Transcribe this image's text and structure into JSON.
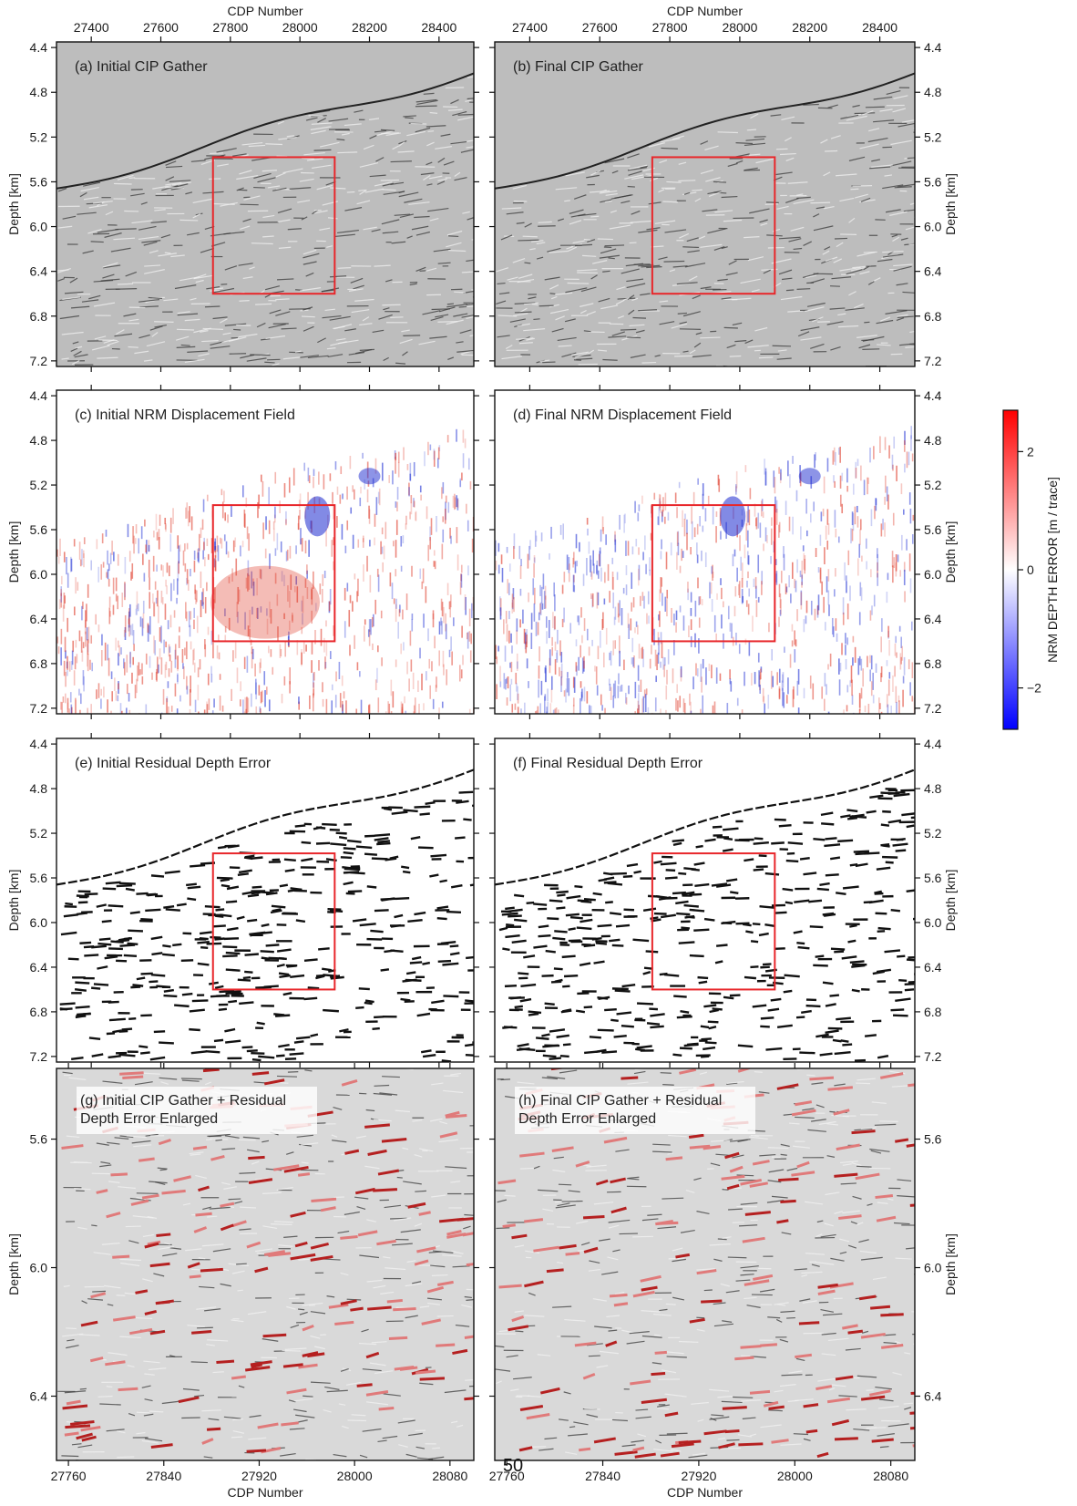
{
  "page_number": "50",
  "colorbar": {
    "label": "NRM DEPTH ERROR [m / trace]",
    "ticks": [
      2,
      0,
      -2
    ],
    "tick_labels": [
      "2",
      "0",
      "−2"
    ],
    "range": [
      -2.7,
      2.7
    ],
    "colors": {
      "high": "#ff0000",
      "mid": "#ffffff",
      "low": "#0000ff"
    }
  },
  "colors": {
    "box": "#e8262a",
    "seismic_bg": "#bdbdbd",
    "red_blue_pos": "#e0402f",
    "red_blue_neg": "#2b3bd6",
    "overlay_red": "#c84040"
  },
  "chart_data": [
    {
      "id": "a",
      "type": "heatmap",
      "title": "(a) Initial CIP Gather",
      "xlabel": "CDP Number",
      "ylabel": "Depth [km]",
      "x_ticks": [
        27400,
        27600,
        27800,
        28000,
        28200,
        28400
      ],
      "y_ticks": [
        "4.4",
        "4.8",
        "5.2",
        "5.6",
        "6.0",
        "6.4",
        "6.8",
        "7.2"
      ],
      "xlim": [
        27300,
        28500
      ],
      "ylim": [
        4.35,
        7.25
      ],
      "style": "seismic",
      "box": {
        "x": [
          27750,
          28100
        ],
        "y": [
          5.38,
          6.6
        ]
      }
    },
    {
      "id": "b",
      "type": "heatmap",
      "title": "(b) Final CIP Gather",
      "xlabel": "CDP Number",
      "ylabel": "Depth [km]",
      "x_ticks": [
        27400,
        27600,
        27800,
        28000,
        28200,
        28400
      ],
      "y_ticks": [
        "4.4",
        "4.8",
        "5.2",
        "5.6",
        "6.0",
        "6.4",
        "6.8",
        "7.2"
      ],
      "xlim": [
        27300,
        28500
      ],
      "ylim": [
        4.35,
        7.25
      ],
      "style": "seismic",
      "box": {
        "x": [
          27750,
          28100
        ],
        "y": [
          5.38,
          6.6
        ]
      }
    },
    {
      "id": "c",
      "type": "heatmap",
      "title": "(c) Initial NRM Displacement Field",
      "xlabel": "",
      "ylabel": "Depth [km]",
      "x_ticks": [],
      "y_ticks": [
        "4.4",
        "4.8",
        "5.2",
        "5.6",
        "6.0",
        "6.4",
        "6.8",
        "7.2"
      ],
      "xlim": [
        27300,
        28500
      ],
      "ylim": [
        4.35,
        7.25
      ],
      "style": "displacement",
      "box": {
        "x": [
          27750,
          28100
        ],
        "y": [
          5.38,
          6.6
        ]
      }
    },
    {
      "id": "d",
      "type": "heatmap",
      "title": "(d) Final NRM Displacement Field",
      "xlabel": "",
      "ylabel": "Depth [km]",
      "x_ticks": [],
      "y_ticks": [
        "4.4",
        "4.8",
        "5.2",
        "5.6",
        "6.0",
        "6.4",
        "6.8",
        "7.2"
      ],
      "xlim": [
        27300,
        28500
      ],
      "ylim": [
        4.35,
        7.25
      ],
      "style": "displacement",
      "box": {
        "x": [
          27750,
          28100
        ],
        "y": [
          5.38,
          6.6
        ]
      }
    },
    {
      "id": "e",
      "type": "heatmap",
      "title": "(e) Initial Residual Depth Error",
      "xlabel": "",
      "ylabel": "Depth [km]",
      "x_ticks": [],
      "y_ticks": [
        "4.4",
        "4.8",
        "5.2",
        "5.6",
        "6.0",
        "6.4",
        "6.8",
        "7.2"
      ],
      "xlim": [
        27300,
        28500
      ],
      "ylim": [
        4.35,
        7.25
      ],
      "style": "dashes",
      "box": {
        "x": [
          27750,
          28100
        ],
        "y": [
          5.38,
          6.6
        ]
      }
    },
    {
      "id": "f",
      "type": "heatmap",
      "title": "(f) Final Residual Depth Error",
      "xlabel": "",
      "ylabel": "Depth [km]",
      "x_ticks": [],
      "y_ticks": [
        "4.4",
        "4.8",
        "5.2",
        "5.6",
        "6.0",
        "6.4",
        "6.8",
        "7.2"
      ],
      "xlim": [
        27300,
        28500
      ],
      "ylim": [
        4.35,
        7.25
      ],
      "style": "dashes",
      "box": {
        "x": [
          27750,
          28100
        ],
        "y": [
          5.38,
          6.6
        ]
      }
    },
    {
      "id": "g",
      "type": "heatmap",
      "title_lines": [
        "(g) Initial CIP Gather + Residual",
        "Depth Error Enlarged"
      ],
      "xlabel": "CDP Number",
      "ylabel": "Depth [km]",
      "x_ticks": [
        27760,
        27840,
        27920,
        28000,
        28080
      ],
      "y_ticks": [
        "5.6",
        "6.0",
        "6.4"
      ],
      "xlim": [
        27750,
        28100
      ],
      "ylim": [
        5.38,
        6.6
      ],
      "style": "enlarged"
    },
    {
      "id": "h",
      "type": "heatmap",
      "title_lines": [
        "(h) Final CIP Gather + Residual",
        "Depth Error Enlarged"
      ],
      "xlabel": "CDP Number",
      "ylabel": "Depth [km]",
      "x_ticks": [
        27760,
        27840,
        27920,
        28000,
        28080
      ],
      "y_ticks": [
        "5.6",
        "6.0",
        "6.4"
      ],
      "xlim": [
        27750,
        28100
      ],
      "ylim": [
        5.38,
        6.6
      ],
      "style": "enlarged"
    }
  ]
}
